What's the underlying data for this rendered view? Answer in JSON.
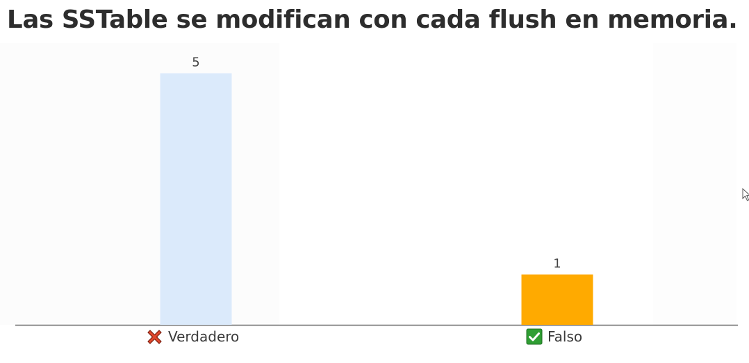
{
  "title": "Las SSTable se modifican con cada flush en memoria.",
  "chart_data": {
    "type": "bar",
    "categories": [
      "Verdadero",
      "Falso"
    ],
    "values": [
      5,
      1
    ],
    "category_icons": [
      "cross-mark-icon",
      "check-mark-icon"
    ],
    "bar_colors": [
      "#dbeafb",
      "#ffaa00"
    ],
    "ylim": [
      0,
      5.6
    ],
    "grid": false,
    "legend": "none",
    "title": "",
    "xlabel": "",
    "ylabel": ""
  },
  "colors": {
    "cross_icon": "#e0482d",
    "check_icon_bg": "#2f9e33",
    "axis": "#6b6b6b",
    "title_text": "#2d2d2d"
  }
}
